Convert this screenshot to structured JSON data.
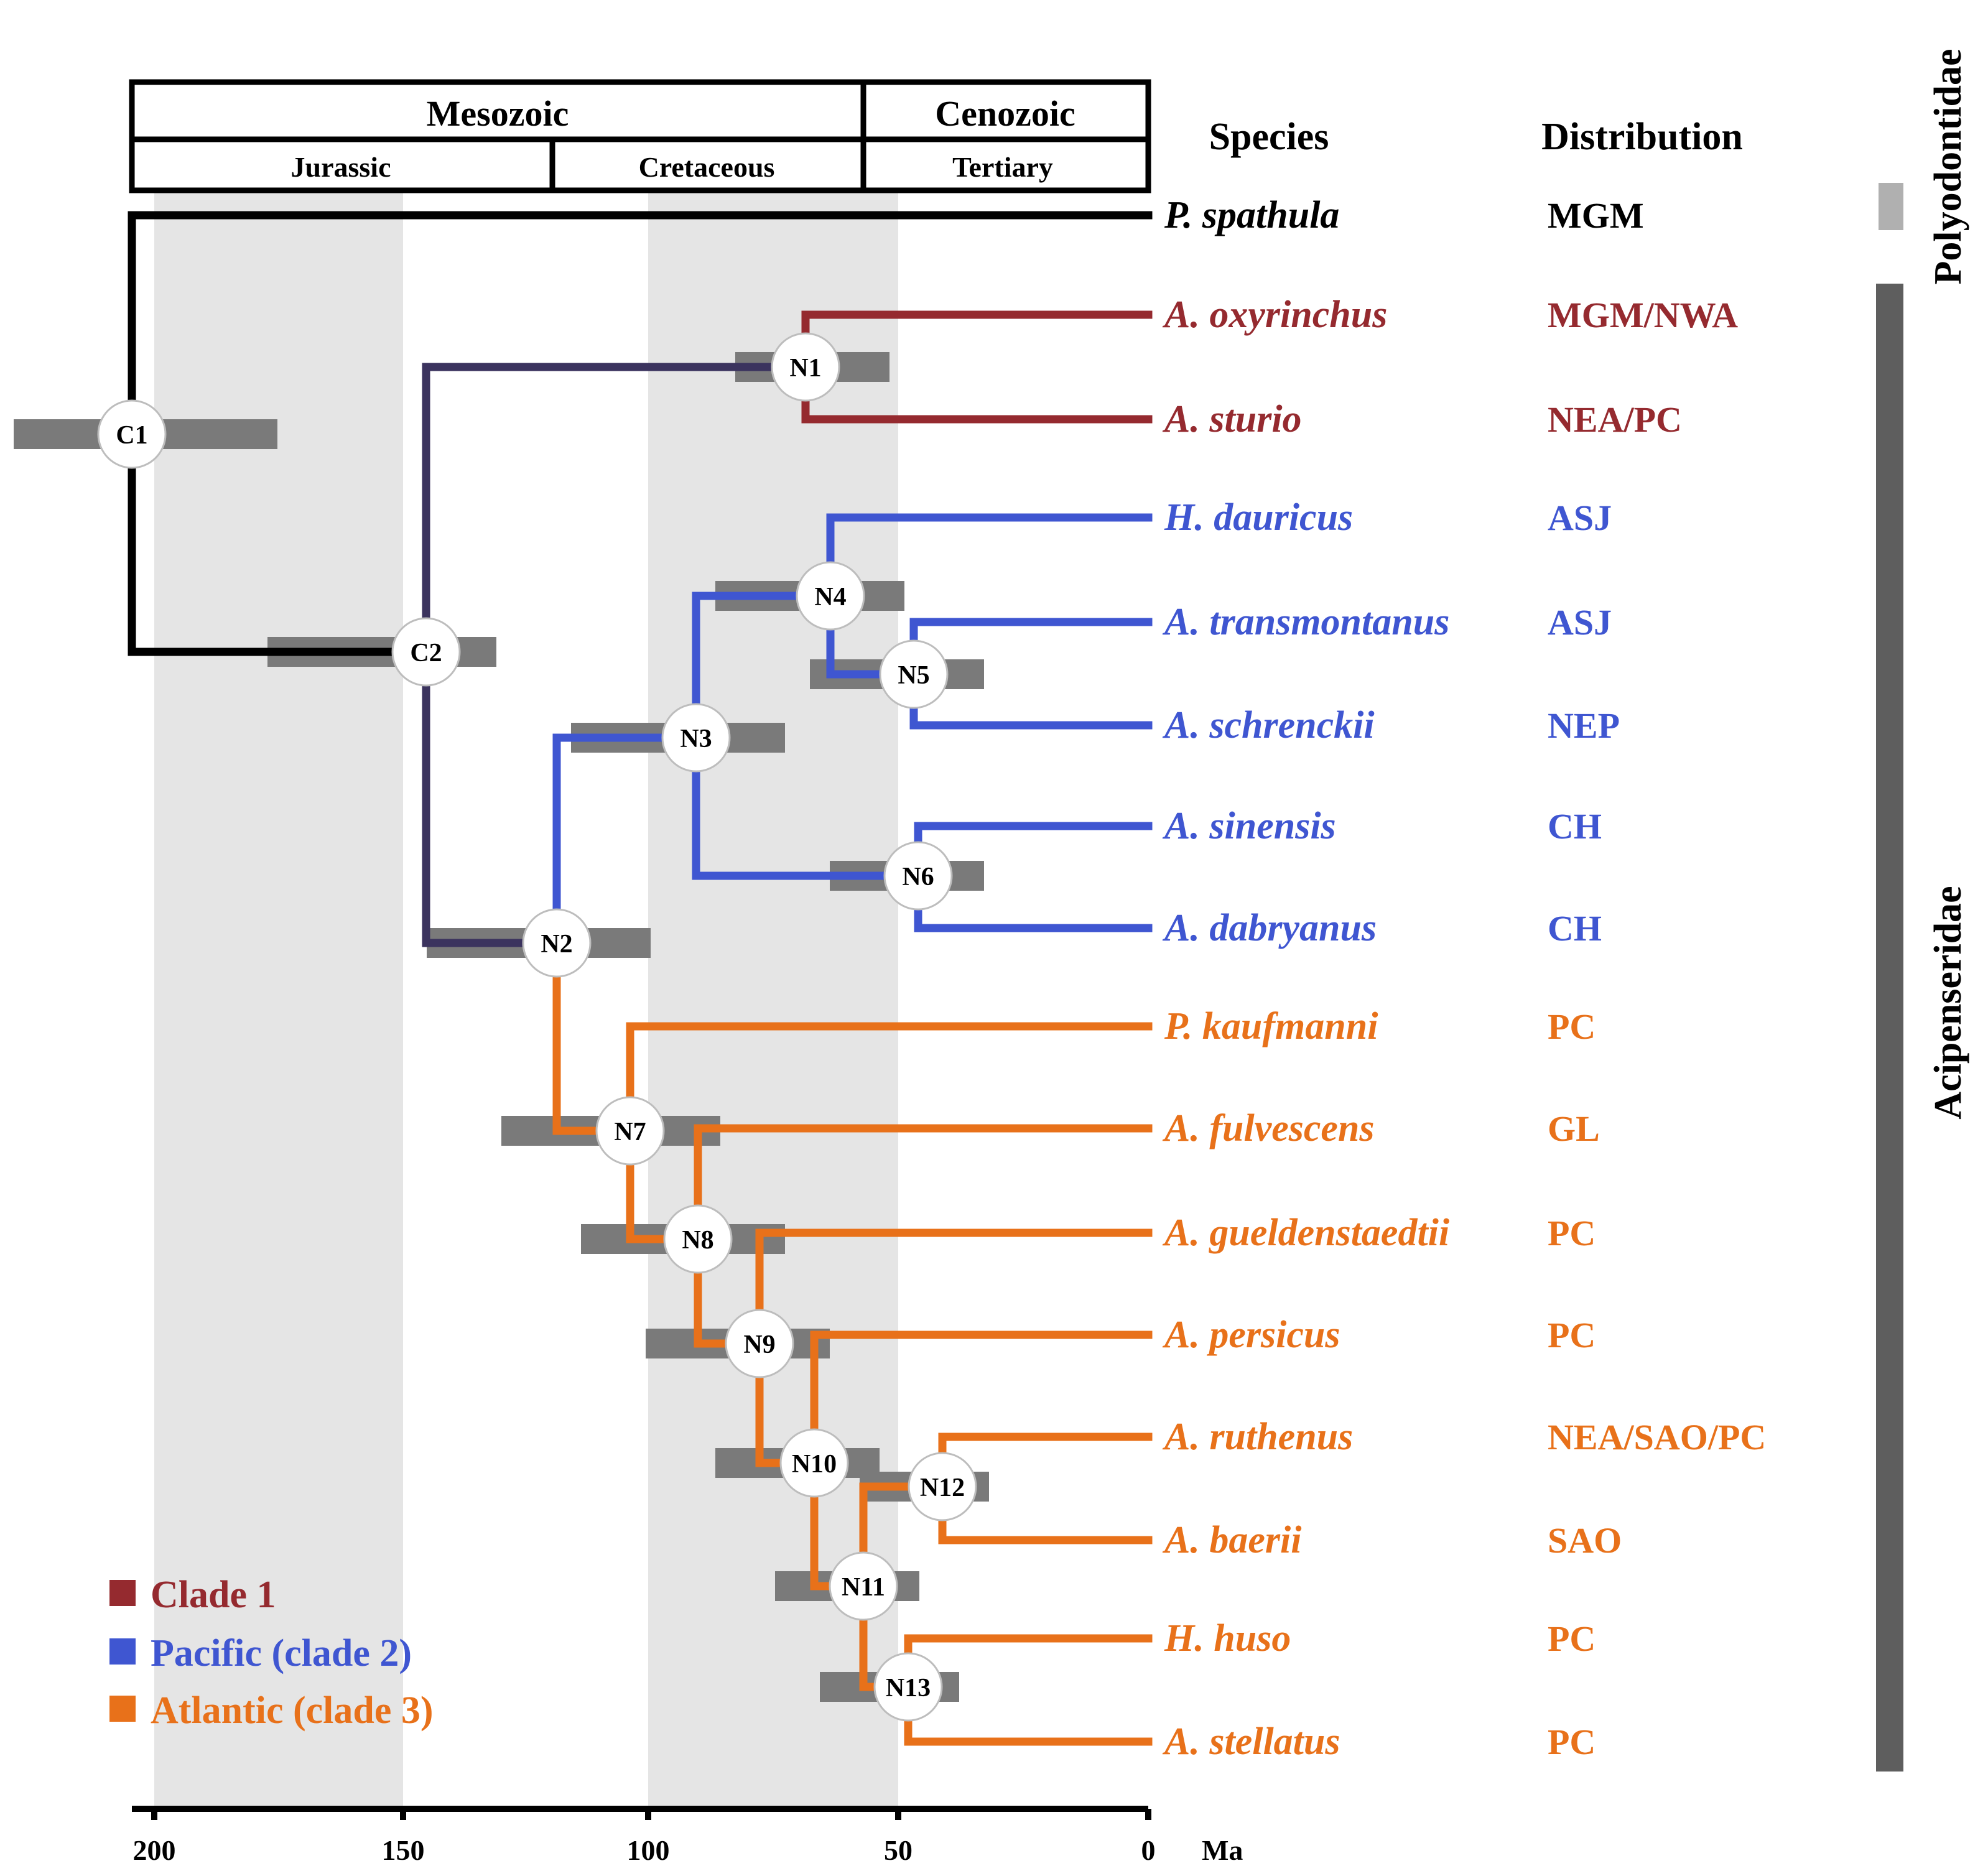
{
  "timescale": {
    "eras": [
      "Mesozoic",
      "Cenozoic"
    ],
    "periods": [
      "Jurassic",
      "Cretaceous",
      "Tertiary"
    ],
    "ticks": [
      "200",
      "150",
      "100",
      "50",
      "0"
    ],
    "unit": "Ma"
  },
  "headers": {
    "species": "Species",
    "distribution": "Distribution"
  },
  "families": {
    "outgroup": "Polyodontidae",
    "ingroup": "Acipenseridae"
  },
  "clade_colors": {
    "outgroup": "#000000",
    "clade1": "#952a2f",
    "pacific": "#3f56d1",
    "atlantic": "#e8711a",
    "stem": "#3b335e"
  },
  "taxa": [
    {
      "name": "P. spathula",
      "distribution": "MGM",
      "clade": "outgroup"
    },
    {
      "name": "A. oxyrinchus",
      "distribution": "MGM/NWA",
      "clade": "clade1"
    },
    {
      "name": "A. sturio",
      "distribution": "NEA/PC",
      "clade": "clade1"
    },
    {
      "name": "H. dauricus",
      "distribution": "ASJ",
      "clade": "pacific"
    },
    {
      "name": "A. transmontanus",
      "distribution": "ASJ",
      "clade": "pacific"
    },
    {
      "name": "A. schrenckii",
      "distribution": "NEP",
      "clade": "pacific"
    },
    {
      "name": "A. sinensis",
      "distribution": "CH",
      "clade": "pacific"
    },
    {
      "name": "A. dabryanus",
      "distribution": "CH",
      "clade": "pacific"
    },
    {
      "name": "P. kaufmanni",
      "distribution": "PC",
      "clade": "atlantic"
    },
    {
      "name": "A. fulvescens",
      "distribution": "GL",
      "clade": "atlantic"
    },
    {
      "name": "A. gueldenstaedtii",
      "distribution": "PC",
      "clade": "atlantic"
    },
    {
      "name": "A. persicus",
      "distribution": "PC",
      "clade": "atlantic"
    },
    {
      "name": "A. ruthenus",
      "distribution": "NEA/SAO/PC",
      "clade": "atlantic"
    },
    {
      "name": "A. baerii",
      "distribution": "SAO",
      "clade": "atlantic"
    },
    {
      "name": "H. huso",
      "distribution": "PC",
      "clade": "atlantic"
    },
    {
      "name": "A. stellatus",
      "distribution": "PC",
      "clade": "atlantic"
    }
  ],
  "nodes": [
    {
      "label": "C1",
      "age_ma": 204,
      "ci_ma": [
        228,
        175
      ]
    },
    {
      "label": "C2",
      "age_ma": 146,
      "ci_ma": [
        177,
        131
      ]
    },
    {
      "label": "N1",
      "age_ma": 69,
      "ci_ma": [
        83,
        52
      ]
    },
    {
      "label": "N2",
      "age_ma": 119,
      "ci_ma": [
        145,
        100
      ]
    },
    {
      "label": "N3",
      "age_ma": 92,
      "ci_ma": [
        116,
        73
      ]
    },
    {
      "label": "N4",
      "age_ma": 64,
      "ci_ma": [
        87,
        49
      ]
    },
    {
      "label": "N5",
      "age_ma": 47,
      "ci_ma": [
        68,
        33
      ]
    },
    {
      "label": "N6",
      "age_ma": 46,
      "ci_ma": [
        64,
        33
      ]
    },
    {
      "label": "N7",
      "age_ma": 104,
      "ci_ma": [
        130,
        86
      ]
    },
    {
      "label": "N8",
      "age_ma": 91,
      "ci_ma": [
        114,
        73
      ]
    },
    {
      "label": "N9",
      "age_ma": 79,
      "ci_ma": [
        101,
        64
      ]
    },
    {
      "label": "N10",
      "age_ma": 67,
      "ci_ma": [
        87,
        54
      ]
    },
    {
      "label": "N11",
      "age_ma": 58,
      "ci_ma": [
        75,
        46
      ]
    },
    {
      "label": "N12",
      "age_ma": 41,
      "ci_ma": [
        58,
        32
      ]
    },
    {
      "label": "N13",
      "age_ma": 48,
      "ci_ma": [
        66,
        38
      ]
    }
  ],
  "legend": [
    {
      "label": "Clade 1",
      "color": "#952a2f"
    },
    {
      "label": "Pacific (clade 2)",
      "color": "#3f56d1"
    },
    {
      "label": "Atlantic (clade 3)",
      "color": "#e8711a"
    }
  ]
}
